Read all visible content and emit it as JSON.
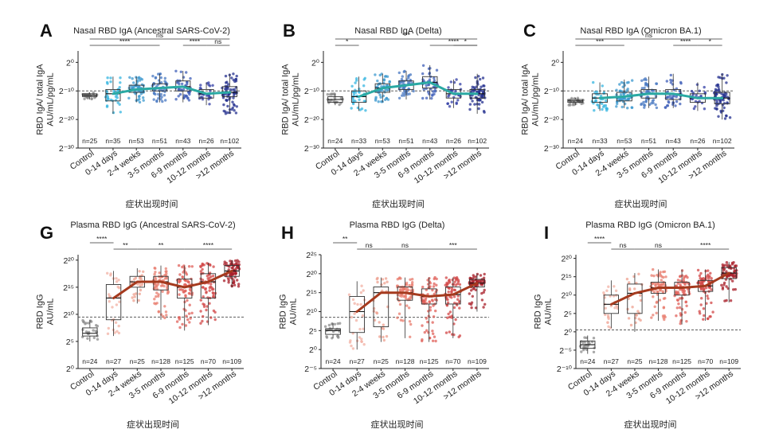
{
  "chart_data": [
    {
      "type": "box",
      "panel_letter": "A",
      "title": "Nasal RBD IgA (Ancestral SARS-CoV-2)",
      "ylabel_lines": [
        "RBD IgA/ total IgA",
        "AU/mL/pg/mL"
      ],
      "xlabel": "症状出现时间",
      "categories": [
        "Control",
        "0-14 days",
        "2-4 weeks",
        "3-5 months",
        "6-9 months",
        "10-12 months",
        ">12 months"
      ],
      "n_labels": [
        "n=25",
        "n=35",
        "n=53",
        "n=51",
        "n=43",
        "n=26",
        "n=102"
      ],
      "yscale": "log2",
      "ylim": [
        -30,
        4
      ],
      "yticks": [
        0,
        -10,
        -20,
        -30
      ],
      "ytick_labels": [
        "2⁰",
        "2⁻¹⁰",
        "2⁻²⁰",
        "2⁻³⁰"
      ],
      "reference_line": -10,
      "medians": [
        -11.5,
        -11,
        -9.5,
        -9,
        -8.5,
        -11,
        -10.5
      ],
      "boxes": [
        {
          "q1": -12,
          "median": -11.5,
          "q3": -11,
          "wlo": -13,
          "whi": -10.5
        },
        {
          "q1": -13.5,
          "median": -11,
          "q3": -9.5,
          "wlo": -18,
          "whi": -5
        },
        {
          "q1": -10.5,
          "median": -9.5,
          "q3": -8,
          "wlo": -14,
          "whi": -5
        },
        {
          "q1": -10,
          "median": -9,
          "q3": -7.5,
          "wlo": -14,
          "whi": -4
        },
        {
          "q1": -10,
          "median": -8.5,
          "q3": -6.5,
          "wlo": -14,
          "whi": -3
        },
        {
          "q1": -12.5,
          "median": -11,
          "q3": -9.5,
          "wlo": -15,
          "whi": -7
        },
        {
          "q1": -12,
          "median": -10.5,
          "q3": -8.5,
          "wlo": -18,
          "whi": -4
        }
      ],
      "sig_brackets": [
        {
          "from": 0,
          "to": 6,
          "label": "ns"
        },
        {
          "from": 0,
          "to": 3,
          "label": "****"
        },
        {
          "from": 4,
          "to": 5,
          "label": "****"
        },
        {
          "from": 5,
          "to": 6,
          "label": "ns"
        }
      ],
      "colors": [
        "#8c8c8c",
        "#35b6e0",
        "#3b98cf",
        "#4878c2",
        "#3f5fb8",
        "#333fa6",
        "#24308f"
      ],
      "trend_color": "#2aa9a3"
    },
    {
      "type": "box",
      "panel_letter": "B",
      "title": "Nasal RBD IgA (Delta)",
      "ylabel_lines": [
        "RBD IgA/ total IgA",
        "AU/mL/pg/mL"
      ],
      "xlabel": "症状出现时间",
      "categories": [
        "Control",
        "0-14 days",
        "2-4 weeks",
        "3-5 months",
        "6-9 months",
        "10-12 months",
        ">12 months"
      ],
      "n_labels": [
        "n=24",
        "n=33",
        "n=53",
        "n=51",
        "n=43",
        "n=26",
        "n=102"
      ],
      "yscale": "log2",
      "ylim": [
        -30,
        4
      ],
      "yticks": [
        0,
        -10,
        -20,
        -30
      ],
      "ytick_labels": [
        "2⁰",
        "2⁻¹⁰",
        "2⁻²⁰",
        "2⁻³⁰"
      ],
      "reference_line": -10,
      "medians": [
        -13,
        -12,
        -9,
        -8,
        -7,
        -11,
        -11
      ],
      "boxes": [
        {
          "q1": -14,
          "median": -13,
          "q3": -12,
          "wlo": -15,
          "whi": -11
        },
        {
          "q1": -14,
          "median": -12,
          "q3": -10,
          "wlo": -17,
          "whi": -5
        },
        {
          "q1": -10.5,
          "median": -9,
          "q3": -7.5,
          "wlo": -14,
          "whi": -4
        },
        {
          "q1": -9.5,
          "median": -8,
          "q3": -6.5,
          "wlo": -13,
          "whi": -3
        },
        {
          "q1": -9,
          "median": -7,
          "q3": -5,
          "wlo": -13,
          "whi": -1
        },
        {
          "q1": -12.5,
          "median": -11,
          "q3": -9.5,
          "wlo": -16,
          "whi": -6
        },
        {
          "q1": -12.5,
          "median": -11,
          "q3": -9.5,
          "wlo": -18,
          "whi": -4
        }
      ],
      "sig_brackets": [
        {
          "from": 0,
          "to": 6,
          "label": "***"
        },
        {
          "from": 0,
          "to": 1,
          "label": "*"
        },
        {
          "from": 4,
          "to": 6,
          "label": "****"
        },
        {
          "from": 5,
          "to": 6,
          "label": "*"
        }
      ],
      "colors": [
        "#8c8c8c",
        "#35b6e0",
        "#3b98cf",
        "#4878c2",
        "#3f5fb8",
        "#333fa6",
        "#24308f"
      ],
      "trend_color": "#2aa9a3"
    },
    {
      "type": "box",
      "panel_letter": "C",
      "title": "Nasal RBD IgA (Omicron BA.1)",
      "ylabel_lines": [
        "RBD IgA/ total IgA",
        "AU/mL/pg/mL"
      ],
      "xlabel": "症状出现时间",
      "categories": [
        "Control",
        "0-14 days",
        "2-4 weeks",
        "3-5 months",
        "6-9 months",
        "10-12 months",
        ">12 months"
      ],
      "n_labels": [
        "n=24",
        "n=33",
        "n=53",
        "n=51",
        "n=43",
        "n=26",
        "n=102"
      ],
      "yscale": "log2",
      "ylim": [
        -30,
        4
      ],
      "yticks": [
        0,
        -10,
        -20,
        -30
      ],
      "ytick_labels": [
        "2⁰",
        "2⁻¹⁰",
        "2⁻²⁰",
        "2⁻³⁰"
      ],
      "reference_line": -10,
      "medians": [
        -13.5,
        -12.5,
        -12,
        -11,
        -11,
        -12.5,
        -12.5
      ],
      "boxes": [
        {
          "q1": -14,
          "median": -13.5,
          "q3": -13,
          "wlo": -15,
          "whi": -12.5
        },
        {
          "q1": -14,
          "median": -12.5,
          "q3": -11,
          "wlo": -17,
          "whi": -7
        },
        {
          "q1": -13.5,
          "median": -12,
          "q3": -10.5,
          "wlo": -16,
          "whi": -6
        },
        {
          "q1": -12.5,
          "median": -11,
          "q3": -9.5,
          "wlo": -16,
          "whi": -5
        },
        {
          "q1": -13,
          "median": -11,
          "q3": -9.5,
          "wlo": -16,
          "whi": -4
        },
        {
          "q1": -14,
          "median": -12.5,
          "q3": -11,
          "wlo": -17,
          "whi": -7
        },
        {
          "q1": -14.5,
          "median": -12.5,
          "q3": -10.5,
          "wlo": -20,
          "whi": -4
        }
      ],
      "sig_brackets": [
        {
          "from": 0,
          "to": 6,
          "label": "ns"
        },
        {
          "from": 0,
          "to": 2,
          "label": "***"
        },
        {
          "from": 4,
          "to": 5,
          "label": "****"
        },
        {
          "from": 5,
          "to": 6,
          "label": "*"
        }
      ],
      "colors": [
        "#8c8c8c",
        "#35b6e0",
        "#3b98cf",
        "#4878c2",
        "#3f5fb8",
        "#333fa6",
        "#24308f"
      ],
      "trend_color": "#2aa9a3"
    },
    {
      "type": "box",
      "panel_letter": "G",
      "title": "Plasma RBD IgG (Ancestral SARS-CoV-2)",
      "ylabel_lines": [
        "RBD IgG",
        "AU/mL"
      ],
      "xlabel": "症状出现时间",
      "categories": [
        "Control",
        "0-14 days",
        "2-4 weeks",
        "3-5 months",
        "6-9 months",
        "10-12 months",
        ">12 months"
      ],
      "n_labels": [
        "n=24",
        "n=27",
        "n=25",
        "n=128",
        "n=125",
        "n=70",
        "n=109"
      ],
      "yscale": "log2",
      "ylim": [
        0,
        21
      ],
      "yticks": [
        0,
        5,
        10,
        15,
        20
      ],
      "ytick_labels": [
        "2⁰",
        "2⁵",
        "2¹⁰",
        "2¹⁵",
        "2²⁰"
      ],
      "reference_line": 9.5,
      "medians": [
        6.5,
        13,
        16,
        16,
        15,
        16,
        18
      ],
      "boxes": [
        {
          "q1": 6,
          "median": 6.5,
          "q3": 7.5,
          "wlo": 5,
          "whi": 9
        },
        {
          "q1": 9,
          "median": 13,
          "q3": 15.5,
          "wlo": 6,
          "whi": 18
        },
        {
          "q1": 15,
          "median": 16,
          "q3": 17,
          "wlo": 12,
          "whi": 18.5
        },
        {
          "q1": 14.5,
          "median": 16,
          "q3": 17,
          "wlo": 9,
          "whi": 19
        },
        {
          "q1": 13,
          "median": 15,
          "q3": 16.5,
          "wlo": 7,
          "whi": 19
        },
        {
          "q1": 13,
          "median": 16,
          "q3": 17.5,
          "wlo": 8,
          "whi": 19.5
        },
        {
          "q1": 17,
          "median": 18,
          "q3": 19,
          "wlo": 15,
          "whi": 20
        }
      ],
      "sig_brackets": [
        {
          "from": 0,
          "to": 1,
          "label": "****"
        },
        {
          "from": 1,
          "to": 2,
          "label": "**"
        },
        {
          "from": 2,
          "to": 4,
          "label": "**"
        },
        {
          "from": 4,
          "to": 6,
          "label": "****"
        }
      ],
      "colors": [
        "#8c8c8c",
        "#f2b0a3",
        "#eda08f",
        "#e87c6e",
        "#e0605a",
        "#d24646",
        "#a81f2a"
      ],
      "trend_color": "#a53a1e"
    },
    {
      "type": "box",
      "panel_letter": "H",
      "title": "Plasma RBD IgG (Delta)",
      "ylabel_lines": [
        "RBD IgG",
        "AU/mL"
      ],
      "xlabel": "症状出现时间",
      "categories": [
        "Control",
        "0-14 days",
        "2-4 weeks",
        "3-5 months",
        "6-9 months",
        "10-12 months",
        ">12 months"
      ],
      "n_labels": [
        "n=24",
        "n=27",
        "n=25",
        "n=128",
        "n=125",
        "n=70",
        "n=109"
      ],
      "yscale": "log2",
      "ylim": [
        -5,
        25
      ],
      "yticks": [
        -5,
        0,
        5,
        10,
        15,
        20,
        25
      ],
      "ytick_labels": [
        "2⁻⁵",
        "2⁰",
        "2⁵",
        "2¹⁰",
        "2¹⁵",
        "2²⁰",
        "2²⁵"
      ],
      "reference_line": 8.5,
      "medians": [
        5,
        10,
        15,
        15,
        14,
        14.5,
        17.5
      ],
      "boxes": [
        {
          "q1": 4,
          "median": 5,
          "q3": 5.5,
          "wlo": 3,
          "whi": 7
        },
        {
          "q1": 4.5,
          "median": 10,
          "q3": 14,
          "wlo": 0,
          "whi": 18
        },
        {
          "q1": 6,
          "median": 15,
          "q3": 16.5,
          "wlo": 2,
          "whi": 19
        },
        {
          "q1": 13,
          "median": 15,
          "q3": 16.5,
          "wlo": 3,
          "whi": 19
        },
        {
          "q1": 12,
          "median": 14,
          "q3": 16,
          "wlo": 2,
          "whi": 19
        },
        {
          "q1": 12,
          "median": 14.5,
          "q3": 16.5,
          "wlo": 3,
          "whi": 19
        },
        {
          "q1": 16.5,
          "median": 17.5,
          "q3": 18.5,
          "wlo": 10,
          "whi": 20
        }
      ],
      "sig_brackets": [
        {
          "from": 0,
          "to": 1,
          "label": "**"
        },
        {
          "from": 1,
          "to": 2,
          "label": "ns"
        },
        {
          "from": 2,
          "to": 4,
          "label": "ns"
        },
        {
          "from": 4,
          "to": 6,
          "label": "***"
        }
      ],
      "colors": [
        "#8c8c8c",
        "#f2b0a3",
        "#eda08f",
        "#e87c6e",
        "#e0605a",
        "#d24646",
        "#a81f2a"
      ],
      "trend_color": "#a53a1e"
    },
    {
      "type": "box",
      "panel_letter": "I",
      "title": "Plasma RBD IgG (Omicron BA.1)",
      "ylabel_lines": [
        "RBD IgG",
        "AU/mL"
      ],
      "xlabel": "症状出现时间",
      "categories": [
        "Control",
        "0-14 days",
        "2-4 weeks",
        "3-5 months",
        "6-9 months",
        "10-12 months",
        ">12 months"
      ],
      "n_labels": [
        "n=24",
        "n=27",
        "n=25",
        "n=128",
        "n=125",
        "n=70",
        "n=109"
      ],
      "yscale": "log2",
      "ylim": [
        -10,
        21
      ],
      "yticks": [
        -10,
        -5,
        0,
        5,
        10,
        15,
        20
      ],
      "ytick_labels": [
        "2⁻¹⁰",
        "2⁻⁵",
        "2⁰",
        "2⁵",
        "2¹⁰",
        "2¹⁵",
        "2²⁰"
      ],
      "reference_line": 0.5,
      "medians": [
        -3.5,
        7.5,
        10.5,
        12,
        12,
        12.5,
        16
      ],
      "boxes": [
        {
          "q1": -4.5,
          "median": -3.5,
          "q3": -2.5,
          "wlo": -6,
          "whi": -1
        },
        {
          "q1": 5,
          "median": 7.5,
          "q3": 10,
          "wlo": 1,
          "whi": 14
        },
        {
          "q1": 5,
          "median": 10.5,
          "q3": 13,
          "wlo": 0,
          "whi": 16
        },
        {
          "q1": 10.5,
          "median": 12,
          "q3": 13.5,
          "wlo": 3,
          "whi": 17
        },
        {
          "q1": 10,
          "median": 12,
          "q3": 13.5,
          "wlo": 2,
          "whi": 17
        },
        {
          "q1": 11,
          "median": 12.5,
          "q3": 14,
          "wlo": 3,
          "whi": 17
        },
        {
          "q1": 14.5,
          "median": 16,
          "q3": 17.5,
          "wlo": 8,
          "whi": 19
        }
      ],
      "sig_brackets": [
        {
          "from": 0,
          "to": 1,
          "label": "****"
        },
        {
          "from": 1,
          "to": 2,
          "label": "ns"
        },
        {
          "from": 2,
          "to": 4,
          "label": "ns"
        },
        {
          "from": 4,
          "to": 6,
          "label": "****"
        }
      ],
      "colors": [
        "#8c8c8c",
        "#f2b0a3",
        "#eda08f",
        "#e87c6e",
        "#e0605a",
        "#d24646",
        "#a81f2a"
      ],
      "trend_color": "#a53a1e"
    }
  ]
}
